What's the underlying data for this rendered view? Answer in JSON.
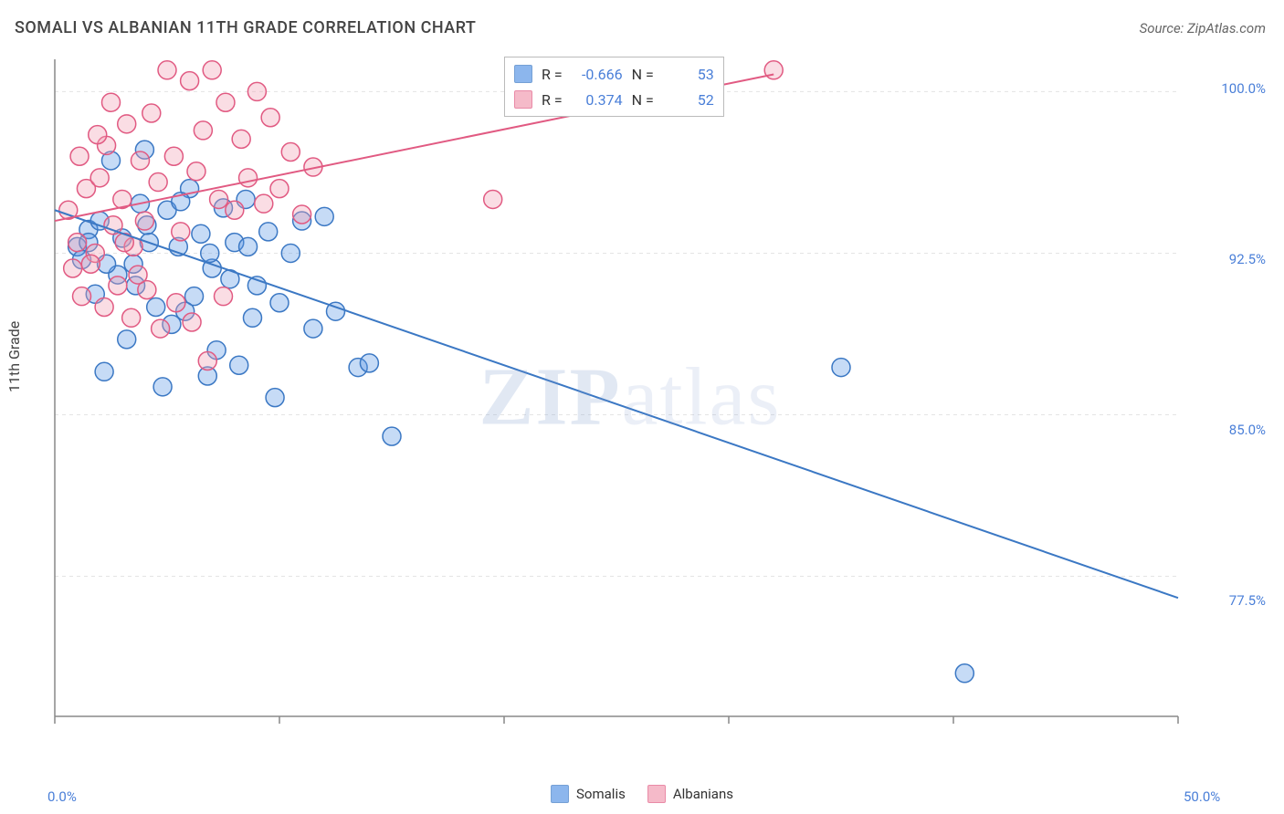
{
  "title": "SOMALI VS ALBANIAN 11TH GRADE CORRELATION CHART",
  "source": "Source: ZipAtlas.com",
  "ylabel": "11th Grade",
  "watermark": {
    "left": "ZIP",
    "right": "atlas"
  },
  "chart": {
    "type": "scatter",
    "background_color": "#ffffff",
    "grid_color": "#e4e4e4",
    "axis_color": "#888888",
    "tick_font_color": "#4a7fd8",
    "xlim": [
      0,
      50
    ],
    "ylim": [
      71,
      101.5
    ],
    "x_ticks": [
      0,
      10,
      20,
      30,
      40,
      50
    ],
    "x_tick_labels": [
      "0.0%",
      "",
      "",
      "",
      "",
      "50.0%"
    ],
    "y_ticks": [
      77.5,
      85.0,
      92.5,
      100.0
    ],
    "y_tick_labels": [
      "77.5%",
      "85.0%",
      "92.5%",
      "100.0%"
    ],
    "marker_radius": 10,
    "marker_fill_opacity": 0.35,
    "marker_stroke_width": 1.5,
    "line_width": 2,
    "series": [
      {
        "name": "Somalis",
        "color": "#5c98e6",
        "stroke": "#3b78c4",
        "R": "-0.666",
        "N": "53",
        "trend": {
          "x1": 0,
          "y1": 94.5,
          "x2": 50,
          "y2": 76.5
        },
        "points": [
          [
            1.0,
            92.8
          ],
          [
            1.5,
            93.6
          ],
          [
            2.0,
            94.0
          ],
          [
            1.2,
            92.2
          ],
          [
            2.5,
            96.8
          ],
          [
            3.0,
            93.2
          ],
          [
            3.5,
            92.0
          ],
          [
            4.0,
            97.3
          ],
          [
            4.2,
            93.0
          ],
          [
            5.0,
            94.5
          ],
          [
            5.5,
            92.8
          ],
          [
            6.0,
            95.5
          ],
          [
            6.5,
            93.4
          ],
          [
            3.8,
            94.8
          ],
          [
            2.8,
            91.5
          ],
          [
            1.8,
            90.6
          ],
          [
            4.5,
            90.0
          ],
          [
            5.2,
            89.2
          ],
          [
            6.2,
            90.5
          ],
          [
            7.0,
            91.8
          ],
          [
            7.5,
            94.6
          ],
          [
            8.0,
            93.0
          ],
          [
            8.5,
            95.0
          ],
          [
            9.0,
            91.0
          ],
          [
            9.5,
            93.5
          ],
          [
            10.0,
            90.2
          ],
          [
            10.5,
            92.5
          ],
          [
            11.0,
            94.0
          ],
          [
            3.2,
            88.5
          ],
          [
            5.8,
            89.8
          ],
          [
            7.2,
            88.0
          ],
          [
            8.8,
            89.5
          ],
          [
            2.2,
            87.0
          ],
          [
            4.8,
            86.3
          ],
          [
            6.8,
            86.8
          ],
          [
            8.2,
            87.3
          ],
          [
            9.8,
            85.8
          ],
          [
            11.5,
            89.0
          ],
          [
            12.5,
            89.8
          ],
          [
            13.5,
            87.2
          ],
          [
            14.0,
            87.4
          ],
          [
            12.0,
            94.2
          ],
          [
            15.0,
            84.0
          ],
          [
            35.0,
            87.2
          ],
          [
            40.5,
            73.0
          ],
          [
            1.5,
            93.0
          ],
          [
            2.3,
            92.0
          ],
          [
            3.6,
            91.0
          ],
          [
            4.1,
            93.8
          ],
          [
            5.6,
            94.9
          ],
          [
            6.9,
            92.5
          ],
          [
            7.8,
            91.3
          ],
          [
            8.6,
            92.8
          ]
        ]
      },
      {
        "name": "Albanians",
        "color": "#f19db3",
        "stroke": "#e15a82",
        "R": "0.374",
        "N": "52",
        "trend": {
          "x1": 0,
          "y1": 94.0,
          "x2": 32,
          "y2": 100.8
        },
        "points": [
          [
            0.6,
            94.5
          ],
          [
            1.0,
            93.0
          ],
          [
            1.4,
            95.5
          ],
          [
            1.8,
            92.5
          ],
          [
            2.0,
            96.0
          ],
          [
            2.3,
            97.5
          ],
          [
            2.6,
            93.8
          ],
          [
            3.0,
            95.0
          ],
          [
            3.2,
            98.5
          ],
          [
            3.5,
            92.8
          ],
          [
            3.8,
            96.8
          ],
          [
            4.0,
            94.0
          ],
          [
            4.3,
            99.0
          ],
          [
            4.6,
            95.8
          ],
          [
            5.0,
            101.0
          ],
          [
            5.3,
            97.0
          ],
          [
            5.6,
            93.5
          ],
          [
            6.0,
            100.5
          ],
          [
            6.3,
            96.3
          ],
          [
            6.6,
            98.2
          ],
          [
            7.0,
            101.0
          ],
          [
            7.3,
            95.0
          ],
          [
            7.6,
            99.5
          ],
          [
            8.0,
            94.5
          ],
          [
            8.3,
            97.8
          ],
          [
            8.6,
            96.0
          ],
          [
            9.0,
            100.0
          ],
          [
            9.3,
            94.8
          ],
          [
            9.6,
            98.8
          ],
          [
            10.0,
            95.5
          ],
          [
            10.5,
            97.2
          ],
          [
            11.0,
            94.3
          ],
          [
            11.5,
            96.5
          ],
          [
            0.8,
            91.8
          ],
          [
            1.2,
            90.5
          ],
          [
            1.6,
            92.0
          ],
          [
            2.2,
            90.0
          ],
          [
            2.8,
            91.0
          ],
          [
            3.4,
            89.5
          ],
          [
            4.1,
            90.8
          ],
          [
            4.7,
            89.0
          ],
          [
            5.4,
            90.2
          ],
          [
            6.1,
            89.3
          ],
          [
            6.8,
            87.5
          ],
          [
            7.5,
            90.5
          ],
          [
            19.5,
            95.0
          ],
          [
            32.0,
            101.0
          ],
          [
            1.1,
            97.0
          ],
          [
            1.9,
            98.0
          ],
          [
            2.5,
            99.5
          ],
          [
            3.1,
            93.0
          ],
          [
            3.7,
            91.5
          ]
        ]
      }
    ]
  },
  "stat_legend": {
    "r_label": "R =",
    "n_label": "N ="
  },
  "bottom_legend_labels": [
    "Somalis",
    "Albanians"
  ]
}
